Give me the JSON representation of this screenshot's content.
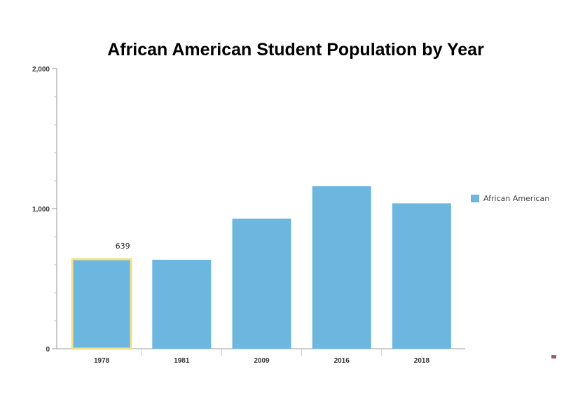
{
  "chart_data": {
    "type": "bar",
    "title": "African American Student Population by Year",
    "categories": [
      "1978",
      "1981",
      "2009",
      "2016",
      "2018"
    ],
    "series": [
      {
        "name": "African American",
        "values": [
          639,
          635,
          928,
          1160,
          1038
        ],
        "color": "#6bb7e0"
      }
    ],
    "ylim": [
      0,
      2000
    ],
    "yticks": [
      0,
      1000,
      2000
    ],
    "ytick_labels": [
      "0",
      "1,000",
      "2,000"
    ],
    "minor_tick_step": 200,
    "xlabel": "",
    "ylabel": "",
    "highlighted": {
      "category": "1978",
      "label": "639",
      "outline_color": "#f5e08a"
    },
    "legend_position": "right",
    "grid": false
  }
}
